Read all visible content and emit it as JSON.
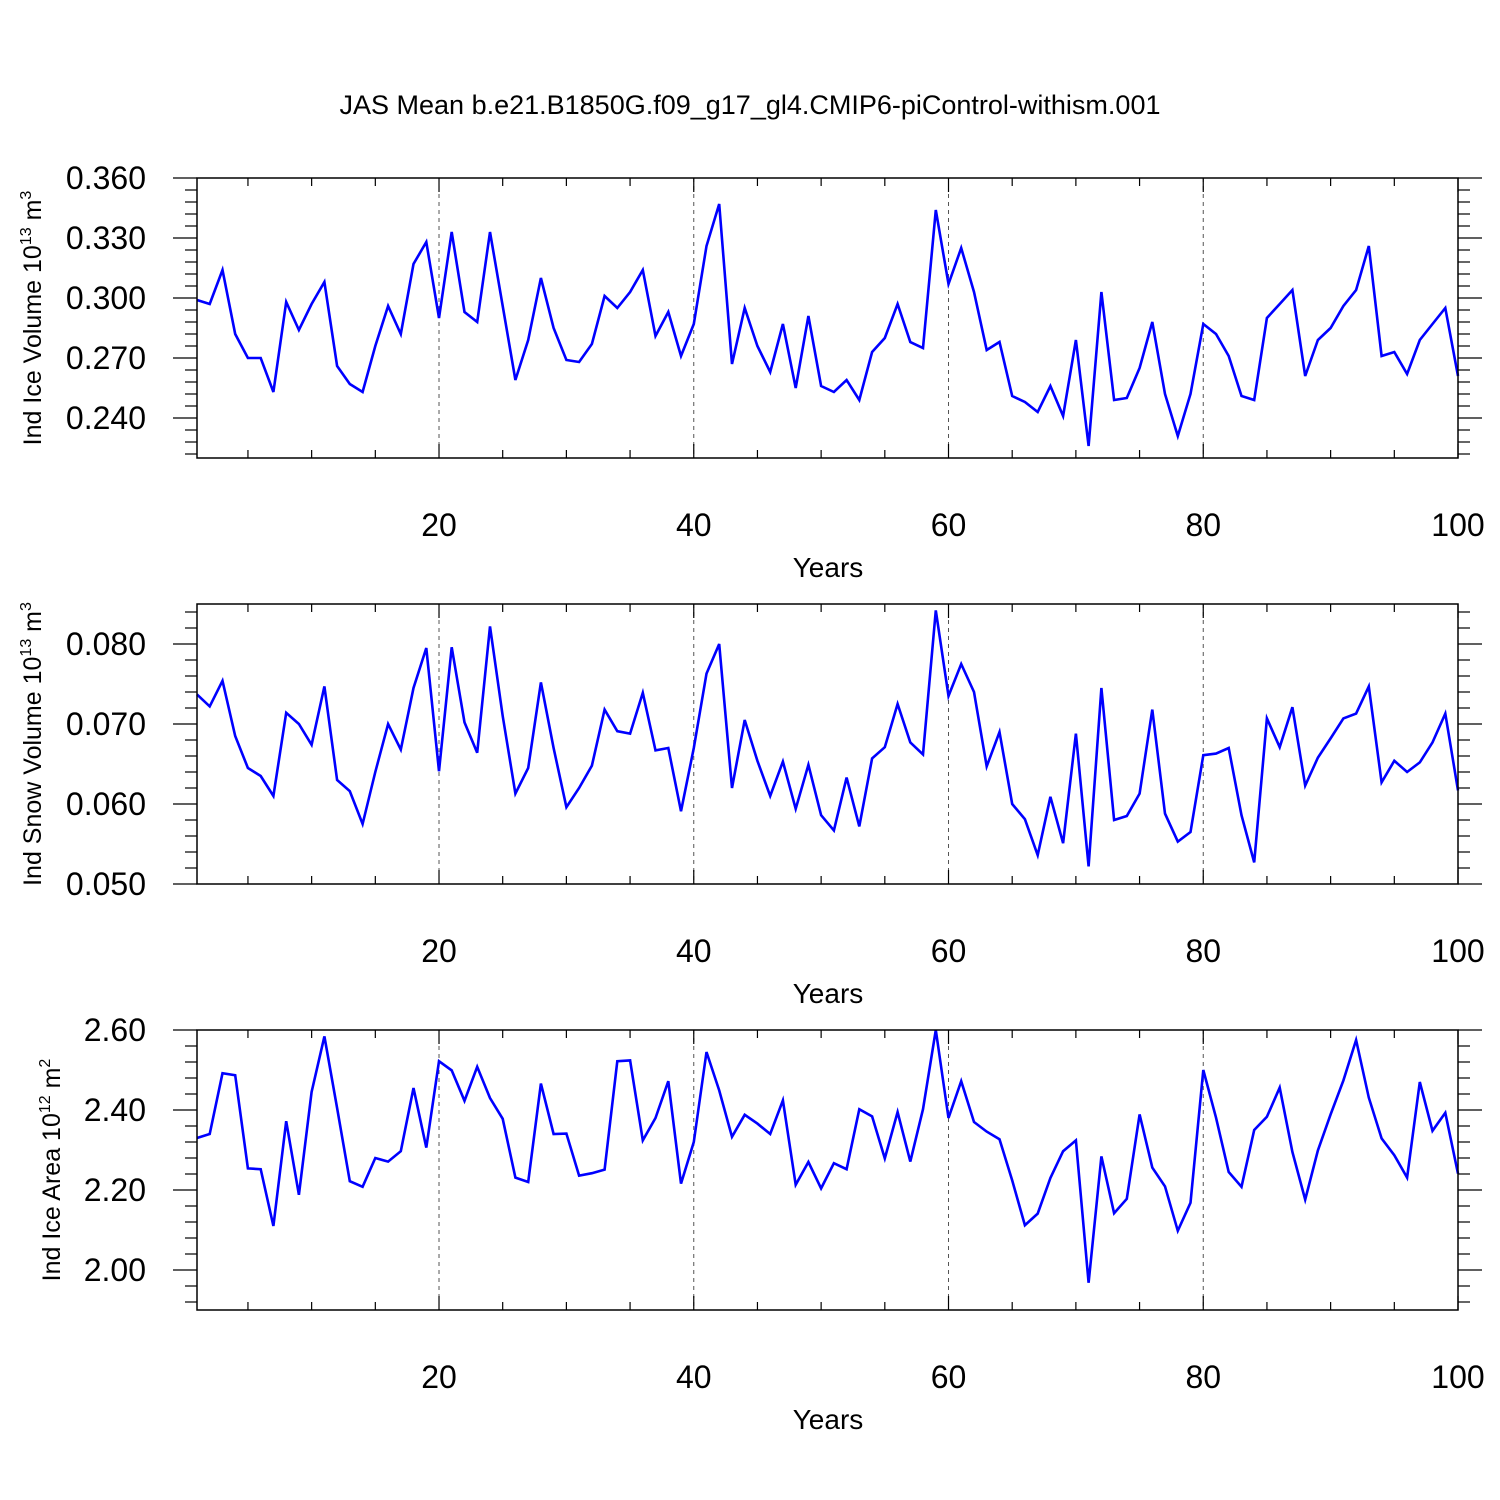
{
  "title": "JAS Mean b.e21.B1850G.f09_g17_gl4.CMIP6-piControl-withism.001",
  "colors": {
    "series": "#0000ff",
    "axis": "#000000",
    "gridline": "#555555"
  },
  "chart_data": [
    {
      "type": "line",
      "ylabel": {
        "main": "Ind Ice Volume 10",
        "exp": "13",
        "unit": " m",
        "unit_exp": "3"
      },
      "xlabel": "Years",
      "xlim": [
        1,
        100
      ],
      "ylim": [
        0.22,
        0.36
      ],
      "yticks": [
        0.24,
        0.27,
        0.3,
        0.33,
        0.36
      ],
      "yticklabels": [
        "0.240",
        "0.270",
        "0.300",
        "0.330",
        "0.360"
      ],
      "xticks": [
        20,
        40,
        60,
        80,
        100
      ],
      "xticklabels": [
        "20",
        "40",
        "60",
        "80",
        "100"
      ],
      "grid": "x-dashed",
      "series": [
        {
          "values": [
            0.299,
            0.297,
            0.314,
            0.282,
            0.27,
            0.27,
            0.253,
            0.298,
            0.284,
            0.297,
            0.308,
            0.266,
            0.257,
            0.253,
            0.276,
            0.296,
            0.282,
            0.317,
            0.328,
            0.29,
            0.333,
            0.293,
            0.288,
            0.333,
            0.296,
            0.259,
            0.279,
            0.31,
            0.285,
            0.269,
            0.268,
            0.277,
            0.301,
            0.295,
            0.303,
            0.314,
            0.281,
            0.293,
            0.271,
            0.287,
            0.326,
            0.347,
            0.267,
            0.295,
            0.276,
            0.263,
            0.287,
            0.255,
            0.291,
            0.256,
            0.253,
            0.259,
            0.249,
            0.273,
            0.28,
            0.297,
            0.278,
            0.275,
            0.344,
            0.307,
            0.325,
            0.303,
            0.274,
            0.278,
            0.251,
            0.248,
            0.243,
            0.256,
            0.241,
            0.279,
            0.226,
            0.303,
            0.249,
            0.25,
            0.265,
            0.288,
            0.252,
            0.231,
            0.252,
            0.287,
            0.282,
            0.271,
            0.251,
            0.249,
            0.29,
            0.297,
            0.304,
            0.261,
            0.279,
            0.285,
            0.296,
            0.304,
            0.326,
            0.271,
            0.273,
            0.262,
            0.279,
            0.287,
            0.295,
            0.261
          ]
        }
      ]
    },
    {
      "type": "line",
      "ylabel": {
        "main": "Ind Snow Volume 10",
        "exp": "13",
        "unit": " m",
        "unit_exp": "3"
      },
      "xlabel": "Years",
      "xlim": [
        1,
        100
      ],
      "ylim": [
        0.05,
        0.085
      ],
      "yticks": [
        0.05,
        0.06,
        0.07,
        0.08
      ],
      "yticklabels": [
        "0.050",
        "0.060",
        "0.070",
        "0.080"
      ],
      "xticks": [
        20,
        40,
        60,
        80,
        100
      ],
      "xticklabels": [
        "20",
        "40",
        "60",
        "80",
        "100"
      ],
      "grid": "x-dashed",
      "series": [
        {
          "values": [
            0.0737,
            0.0722,
            0.0754,
            0.0685,
            0.0645,
            0.0635,
            0.061,
            0.0714,
            0.07,
            0.0674,
            0.0747,
            0.063,
            0.0616,
            0.0575,
            0.064,
            0.07,
            0.0668,
            0.0745,
            0.0795,
            0.0641,
            0.0796,
            0.0702,
            0.0664,
            0.0822,
            0.071,
            0.0613,
            0.0645,
            0.0752,
            0.067,
            0.0596,
            0.062,
            0.0648,
            0.0718,
            0.0691,
            0.0688,
            0.0739,
            0.0667,
            0.067,
            0.0591,
            0.067,
            0.0763,
            0.08,
            0.062,
            0.0705,
            0.0654,
            0.061,
            0.0653,
            0.0594,
            0.0649,
            0.0586,
            0.0567,
            0.0633,
            0.0572,
            0.0657,
            0.0671,
            0.0725,
            0.0677,
            0.0662,
            0.0842,
            0.0735,
            0.0775,
            0.074,
            0.0647,
            0.069,
            0.06,
            0.0581,
            0.0536,
            0.0609,
            0.0551,
            0.0688,
            0.0522,
            0.0745,
            0.058,
            0.0585,
            0.0613,
            0.0718,
            0.0588,
            0.0553,
            0.0565,
            0.0661,
            0.0663,
            0.067,
            0.0586,
            0.0527,
            0.0707,
            0.0671,
            0.0721,
            0.0623,
            0.0658,
            0.0682,
            0.0707,
            0.0713,
            0.0747,
            0.0627,
            0.0654,
            0.064,
            0.0652,
            0.0677,
            0.0713,
            0.0617
          ]
        }
      ]
    },
    {
      "type": "line",
      "ylabel": {
        "main": "Ind Ice Area 10",
        "exp": "12",
        "unit": " m",
        "unit_exp": "2"
      },
      "xlabel": "Years",
      "xlim": [
        1,
        100
      ],
      "ylim": [
        1.9,
        2.6
      ],
      "yticks": [
        2.0,
        2.2,
        2.4,
        2.6
      ],
      "yticklabels": [
        "2.00",
        "2.20",
        "2.40",
        "2.60"
      ],
      "xticks": [
        20,
        40,
        60,
        80,
        100
      ],
      "xticklabels": [
        "20",
        "40",
        "60",
        "80",
        "100"
      ],
      "grid": "x-dashed",
      "series": [
        {
          "values": [
            2.33,
            2.34,
            2.492,
            2.487,
            2.254,
            2.252,
            2.11,
            2.372,
            2.188,
            2.445,
            2.584,
            2.405,
            2.222,
            2.208,
            2.28,
            2.271,
            2.297,
            2.455,
            2.306,
            2.522,
            2.499,
            2.423,
            2.508,
            2.43,
            2.378,
            2.231,
            2.22,
            2.466,
            2.34,
            2.341,
            2.236,
            2.242,
            2.251,
            2.522,
            2.524,
            2.324,
            2.38,
            2.472,
            2.216,
            2.32,
            2.545,
            2.449,
            2.333,
            2.388,
            2.366,
            2.34,
            2.424,
            2.213,
            2.27,
            2.204,
            2.267,
            2.252,
            2.402,
            2.384,
            2.279,
            2.395,
            2.271,
            2.402,
            2.6,
            2.38,
            2.472,
            2.37,
            2.346,
            2.327,
            2.224,
            2.112,
            2.141,
            2.23,
            2.297,
            2.324,
            1.968,
            2.284,
            2.142,
            2.178,
            2.389,
            2.256,
            2.209,
            2.098,
            2.168,
            2.5,
            2.381,
            2.245,
            2.208,
            2.35,
            2.383,
            2.456,
            2.295,
            2.176,
            2.299,
            2.389,
            2.474,
            2.575,
            2.431,
            2.329,
            2.287,
            2.231,
            2.47,
            2.348,
            2.393,
            2.241
          ]
        }
      ]
    }
  ]
}
